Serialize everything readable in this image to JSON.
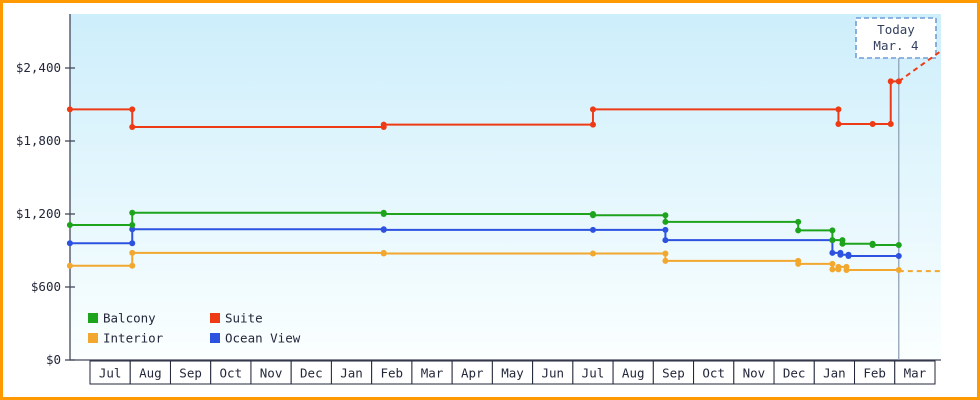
{
  "page": {
    "border_color": "#ff9900",
    "background": "#ffffff"
  },
  "chart_data": {
    "type": "line",
    "title": "",
    "xlabel": "",
    "ylabel": "",
    "ylim": [
      0,
      2845
    ],
    "y_axis": {
      "tick_values": [
        0,
        600,
        1200,
        1800,
        2400
      ],
      "tick_labels": [
        "$0",
        "$600",
        "$1,200",
        "$1,800",
        "$2,400"
      ]
    },
    "x_axis": {
      "month_labels": [
        "Jul",
        "Aug",
        "Sep",
        "Oct",
        "Nov",
        "Dec",
        "Jan",
        "Feb",
        "Mar",
        "Apr",
        "May",
        "Jun",
        "Jul",
        "Aug",
        "Sep",
        "Oct",
        "Nov",
        "Dec",
        "Jan",
        "Feb",
        "Mar"
      ]
    },
    "today": {
      "x": 20.1,
      "label_line1": "Today",
      "label_line2": "Mar. 4"
    },
    "legend": {
      "rows": [
        [
          {
            "label": "Balcony",
            "color": "#1da31c"
          },
          {
            "label": "Suite",
            "color": "#ee3b16"
          }
        ],
        [
          {
            "label": "Interior",
            "color": "#f2a72e"
          },
          {
            "label": "Ocean View",
            "color": "#2d52e0"
          }
        ]
      ]
    },
    "style": {
      "gradient_top": "#cdeefb",
      "gradient_bottom": "#fbffff",
      "axis_color": "#44485a",
      "text_color": "#23273a",
      "month_box_border": "#23273a",
      "month_box_fill": "#ffffff",
      "today_line_color": "#8a9bb0",
      "today_box_border": "#6f9ed6",
      "today_box_fill": "#ffffff",
      "today_text_color": "#33415e"
    },
    "series": [
      {
        "name": "Interior",
        "color": "#f2a72e",
        "points": [
          [
            -0.5,
            775
          ],
          [
            1.05,
            775
          ],
          [
            1.05,
            880
          ],
          [
            7.3,
            880
          ],
          [
            7.3,
            875
          ],
          [
            12.5,
            875
          ],
          [
            14.3,
            875
          ],
          [
            14.3,
            815
          ],
          [
            17.6,
            815
          ],
          [
            17.6,
            790
          ],
          [
            18.45,
            790
          ],
          [
            18.45,
            745
          ],
          [
            18.6,
            745
          ],
          [
            18.6,
            765
          ],
          [
            18.8,
            765
          ],
          [
            18.8,
            740
          ],
          [
            20.1,
            740
          ]
        ],
        "dashed": [
          [
            20.1,
            730
          ],
          [
            21.15,
            730
          ]
        ]
      },
      {
        "name": "Ocean View",
        "color": "#2d52e0",
        "points": [
          [
            -0.5,
            960
          ],
          [
            1.05,
            960
          ],
          [
            1.05,
            1075
          ],
          [
            7.3,
            1075
          ],
          [
            7.3,
            1070
          ],
          [
            12.5,
            1070
          ],
          [
            14.3,
            1070
          ],
          [
            14.3,
            985
          ],
          [
            18.45,
            985
          ],
          [
            18.45,
            880
          ],
          [
            18.65,
            880
          ],
          [
            18.65,
            865
          ],
          [
            18.85,
            865
          ],
          [
            18.85,
            855
          ],
          [
            20.1,
            855
          ]
        ],
        "dashed": []
      },
      {
        "name": "Balcony",
        "color": "#1da31c",
        "points": [
          [
            -0.5,
            1110
          ],
          [
            1.05,
            1110
          ],
          [
            1.05,
            1210
          ],
          [
            7.3,
            1210
          ],
          [
            7.3,
            1200
          ],
          [
            12.5,
            1200
          ],
          [
            12.5,
            1190
          ],
          [
            14.3,
            1190
          ],
          [
            14.3,
            1135
          ],
          [
            17.6,
            1135
          ],
          [
            17.6,
            1065
          ],
          [
            18.45,
            1065
          ],
          [
            18.45,
            985
          ],
          [
            18.7,
            985
          ],
          [
            18.7,
            955
          ],
          [
            19.45,
            955
          ],
          [
            19.45,
            945
          ],
          [
            20.1,
            945
          ]
        ],
        "dashed": []
      },
      {
        "name": "Suite",
        "color": "#ee3b16",
        "points": [
          [
            -0.5,
            2060
          ],
          [
            1.05,
            2060
          ],
          [
            1.05,
            1915
          ],
          [
            7.3,
            1915
          ],
          [
            7.3,
            1935
          ],
          [
            12.5,
            1935
          ],
          [
            12.5,
            2060
          ],
          [
            18.6,
            2060
          ],
          [
            18.6,
            1940
          ],
          [
            19.45,
            1940
          ],
          [
            19.9,
            1940
          ],
          [
            19.9,
            2290
          ],
          [
            20.1,
            2290
          ]
        ],
        "dashed": [
          [
            20.1,
            2290
          ],
          [
            21.15,
            2540
          ]
        ]
      }
    ]
  }
}
